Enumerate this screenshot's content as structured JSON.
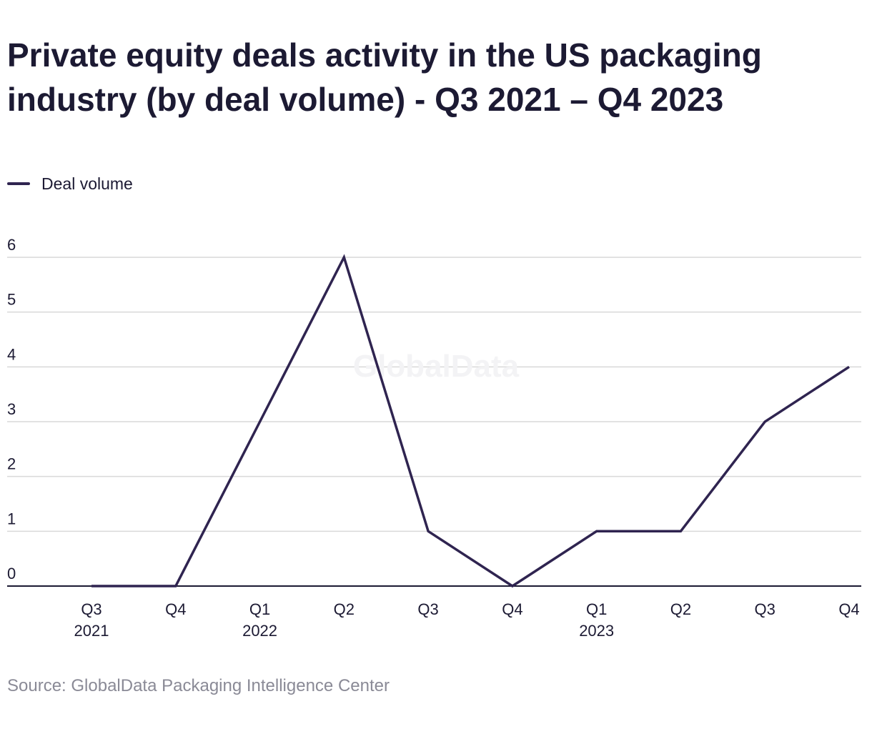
{
  "colors": {
    "series": "#2f2450",
    "grid": "#d9d9d9",
    "axis": "#1c1a33",
    "text": "#1c1a33",
    "source": "#8a8a96",
    "watermark": "#f3f3f5"
  },
  "watermark": "GlobalData",
  "source": "Source: GlobalData Packaging Intelligence Center",
  "chart_data": {
    "type": "line",
    "title": "Private equity deals activity in the US packaging industry (by deal volume) - Q3 2021 – Q4 2023",
    "xlabel": "",
    "ylabel": "",
    "categories": [
      "Q3 2021",
      "Q4 2021",
      "Q1 2022",
      "Q2 2022",
      "Q3 2022",
      "Q4 2022",
      "Q1 2023",
      "Q2 2023",
      "Q3 2023",
      "Q4 2023"
    ],
    "tick_labels": [
      [
        "Q3",
        "2021"
      ],
      [
        "Q4"
      ],
      [
        "Q1",
        "2022"
      ],
      [
        "Q2"
      ],
      [
        "Q3"
      ],
      [
        "Q4"
      ],
      [
        "Q1",
        "2023"
      ],
      [
        "Q2"
      ],
      [
        "Q3"
      ],
      [
        "Q4"
      ]
    ],
    "series": [
      {
        "name": "Deal volume",
        "values": [
          0,
          0,
          3,
          6,
          1,
          0,
          1,
          1,
          3,
          4
        ]
      }
    ],
    "ylim": [
      0,
      6
    ],
    "yticks": [
      0,
      1,
      2,
      3,
      4,
      5,
      6
    ],
    "grid": true,
    "legend": "top-left"
  }
}
